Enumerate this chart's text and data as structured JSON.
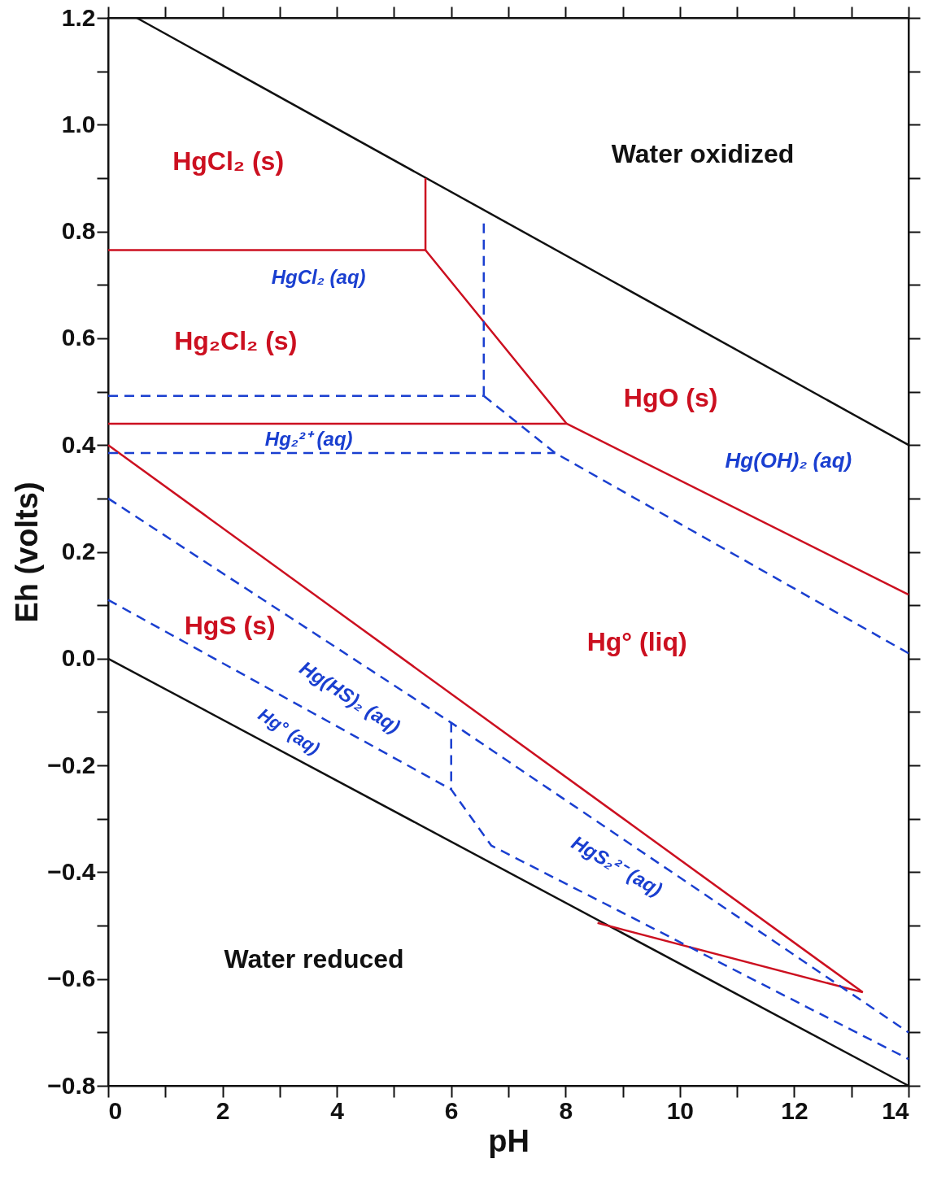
{
  "chart_data": {
    "type": "line",
    "xlabel": "pH",
    "ylabel": "Eh (volts)",
    "xlim": [
      0,
      14
    ],
    "ylim": [
      -0.8,
      1.2
    ],
    "xticks": [
      0,
      {
        "value": 1,
        "label": null
      },
      2,
      {
        "value": 3,
        "label": null
      },
      4,
      {
        "value": 5,
        "label": null
      },
      6,
      {
        "value": 7,
        "label": null
      },
      8,
      {
        "value": 9,
        "label": null
      },
      10,
      {
        "value": 11,
        "label": null
      },
      12,
      {
        "value": 13,
        "label": null
      },
      14
    ],
    "yticks": [
      -0.8,
      {
        "value": -0.7,
        "label": null
      },
      -0.6,
      {
        "value": -0.5,
        "label": null
      },
      -0.4,
      {
        "value": -0.3,
        "label": null
      },
      -0.2,
      {
        "value": -0.1,
        "label": null
      },
      {
        "value": 0,
        "label": "0.0"
      },
      {
        "value": 0.1,
        "label": null
      },
      0.2,
      {
        "value": 0.3,
        "label": null
      },
      0.4,
      {
        "value": 0.5,
        "label": null
      },
      0.6,
      {
        "value": 0.7,
        "label": null
      },
      0.8,
      {
        "value": 0.9,
        "label": null
      },
      {
        "value": 1,
        "label": "1.0"
      },
      {
        "value": 1.1,
        "label": null
      },
      1.2
    ],
    "grid": false,
    "legend": false,
    "marker": "none",
    "series": [
      {
        "color": "#111111",
        "line_style": "solid",
        "x": [
          0.5,
          14
        ],
        "values": [
          1.2,
          0.4
        ]
      },
      {
        "color": "#111111",
        "line_style": "solid",
        "x": [
          0,
          14
        ],
        "values": [
          0.0,
          -0.8
        ]
      },
      {
        "color": "#cc1020",
        "line_style": "solid",
        "x": [
          0,
          5.55
        ],
        "values": [
          0.765,
          0.765
        ]
      },
      {
        "color": "#cc1020",
        "line_style": "solid",
        "x": [
          5.55,
          5.55
        ],
        "values": [
          0.765,
          0.9
        ]
      },
      {
        "color": "#cc1020",
        "line_style": "solid",
        "x": [
          5.55,
          8.02,
          14
        ],
        "values": [
          0.765,
          0.44,
          0.12
        ]
      },
      {
        "color": "#cc1020",
        "line_style": "solid",
        "x": [
          0,
          8.02
        ],
        "values": [
          0.44,
          0.44
        ]
      },
      {
        "color": "#cc1020",
        "line_style": "solid",
        "x": [
          0,
          13.2
        ],
        "values": [
          0.4,
          -0.625
        ]
      },
      {
        "color": "#cc1020",
        "line_style": "solid",
        "x": [
          8.56,
          13.2
        ],
        "values": [
          -0.495,
          -0.625
        ]
      },
      {
        "color": "#1a3fd0",
        "line_style": "dashed",
        "x": [
          0,
          6.57
        ],
        "values": [
          0.492,
          0.492
        ]
      },
      {
        "color": "#1a3fd0",
        "line_style": "dashed",
        "x": [
          6.57,
          6.57
        ],
        "values": [
          0.492,
          0.82
        ]
      },
      {
        "color": "#1a3fd0",
        "line_style": "dashed",
        "x": [
          6.57,
          7.82,
          14
        ],
        "values": [
          0.492,
          0.385,
          0.01
        ]
      },
      {
        "color": "#1a3fd0",
        "line_style": "dashed",
        "x": [
          0,
          7.82
        ],
        "values": [
          0.385,
          0.385
        ]
      },
      {
        "color": "#1a3fd0",
        "line_style": "dashed",
        "x": [
          0,
          6,
          14
        ],
        "values": [
          0.3,
          -0.12,
          -0.7
        ]
      },
      {
        "color": "#1a3fd0",
        "line_style": "dashed",
        "x": [
          0,
          6,
          6.7,
          14
        ],
        "values": [
          0.11,
          -0.245,
          -0.35,
          -0.75
        ]
      },
      {
        "color": "#1a3fd0",
        "line_style": "dashed",
        "x": [
          6,
          6
        ],
        "values": [
          -0.12,
          -0.245
        ]
      }
    ],
    "annotations": [
      "Water oxidized",
      "HgCl₂ (s)",
      "HgCl₂ (aq)",
      "Hg₂Cl₂ (s)",
      "HgO (s)",
      "Hg₂²⁺ (aq)",
      "Hg(OH)₂ (aq)",
      "HgS (s)",
      "Hg° (liq)",
      "Hg(HS)₂ (aq)",
      "Hg° (aq)",
      "HgS₂²⁻ (aq)",
      "Water reduced"
    ]
  }
}
